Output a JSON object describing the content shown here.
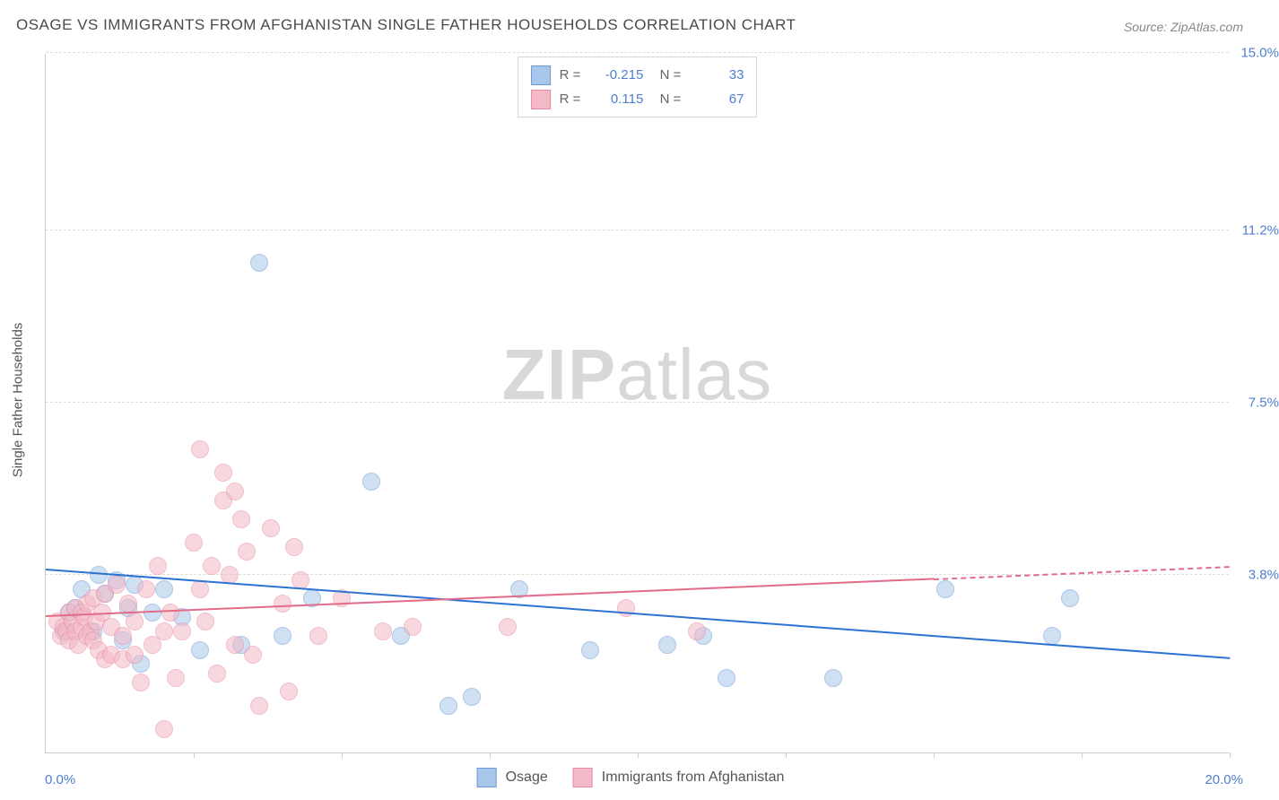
{
  "title": "OSAGE VS IMMIGRANTS FROM AFGHANISTAN SINGLE FATHER HOUSEHOLDS CORRELATION CHART",
  "source": "Source: ZipAtlas.com",
  "ylabel": "Single Father Households",
  "watermark_bold": "ZIP",
  "watermark_thin": "atlas",
  "chart": {
    "type": "scatter",
    "xlim": [
      0,
      20
    ],
    "ylim": [
      0,
      15
    ],
    "x_corner_min_label": "0.0%",
    "x_corner_max_label": "20.0%",
    "y_grid": [
      {
        "value": 3.8,
        "label": "3.8%"
      },
      {
        "value": 7.5,
        "label": "7.5%"
      },
      {
        "value": 11.2,
        "label": "11.2%"
      },
      {
        "value": 15.0,
        "label": "15.0%"
      }
    ],
    "x_ticks": [
      2.5,
      5.0,
      7.5,
      10.0,
      12.5,
      15.0,
      17.5,
      20.0
    ],
    "background_color": "#ffffff",
    "grid_color": "#dddddd",
    "axis_color": "#cccccc",
    "label_color": "#4f7fce",
    "series": [
      {
        "name": "Osage",
        "color_fill": "#a9c7ea",
        "color_stroke": "#6a9bd8",
        "fill_opacity": 0.55,
        "marker_radius": 10,
        "R": "-0.215",
        "N": "33",
        "trend": {
          "x1": 0,
          "y1": 3.9,
          "x2": 20,
          "y2": 2.0,
          "color": "#2e72d2",
          "width": 2.5
        },
        "points": [
          [
            0.3,
            2.6
          ],
          [
            0.4,
            3.0
          ],
          [
            0.5,
            3.1
          ],
          [
            0.6,
            3.5
          ],
          [
            0.8,
            2.6
          ],
          [
            0.9,
            3.8
          ],
          [
            1.0,
            3.4
          ],
          [
            1.2,
            3.7
          ],
          [
            1.3,
            2.4
          ],
          [
            1.4,
            3.1
          ],
          [
            1.5,
            3.6
          ],
          [
            1.6,
            1.9
          ],
          [
            1.8,
            3.0
          ],
          [
            2.0,
            3.5
          ],
          [
            2.3,
            2.9
          ],
          [
            2.6,
            2.2
          ],
          [
            3.3,
            2.3
          ],
          [
            3.6,
            10.5
          ],
          [
            4.0,
            2.5
          ],
          [
            4.5,
            3.3
          ],
          [
            5.5,
            5.8
          ],
          [
            6.0,
            2.5
          ],
          [
            6.8,
            1.0
          ],
          [
            7.2,
            1.2
          ],
          [
            8.0,
            3.5
          ],
          [
            9.2,
            2.2
          ],
          [
            10.5,
            2.3
          ],
          [
            11.1,
            2.5
          ],
          [
            11.5,
            1.6
          ],
          [
            13.3,
            1.6
          ],
          [
            15.2,
            3.5
          ],
          [
            17.0,
            2.5
          ],
          [
            17.3,
            3.3
          ]
        ]
      },
      {
        "name": "Immigrants from Afghanistan",
        "color_fill": "#f3b9c6",
        "color_stroke": "#e98aa2",
        "fill_opacity": 0.55,
        "marker_radius": 10,
        "R": "0.115",
        "N": "67",
        "trend": {
          "x1": 0,
          "y1": 2.9,
          "x2": 15,
          "y2": 3.7,
          "color": "#e26b8a",
          "width": 2,
          "dash_extend_to": 20
        },
        "points": [
          [
            0.2,
            2.8
          ],
          [
            0.25,
            2.5
          ],
          [
            0.3,
            2.7
          ],
          [
            0.35,
            2.6
          ],
          [
            0.4,
            2.4
          ],
          [
            0.4,
            3.0
          ],
          [
            0.45,
            2.8
          ],
          [
            0.5,
            2.6
          ],
          [
            0.5,
            3.1
          ],
          [
            0.55,
            2.3
          ],
          [
            0.6,
            2.7
          ],
          [
            0.6,
            3.0
          ],
          [
            0.65,
            2.9
          ],
          [
            0.7,
            2.5
          ],
          [
            0.7,
            3.2
          ],
          [
            0.75,
            2.6
          ],
          [
            0.8,
            2.4
          ],
          [
            0.8,
            3.3
          ],
          [
            0.85,
            2.8
          ],
          [
            0.9,
            2.2
          ],
          [
            0.95,
            3.0
          ],
          [
            1.0,
            2.0
          ],
          [
            1.0,
            3.4
          ],
          [
            1.1,
            2.1
          ],
          [
            1.1,
            2.7
          ],
          [
            1.2,
            3.6
          ],
          [
            1.3,
            2.5
          ],
          [
            1.3,
            2.0
          ],
          [
            1.4,
            3.2
          ],
          [
            1.5,
            2.1
          ],
          [
            1.5,
            2.8
          ],
          [
            1.6,
            1.5
          ],
          [
            1.7,
            3.5
          ],
          [
            1.8,
            2.3
          ],
          [
            1.9,
            4.0
          ],
          [
            2.0,
            2.6
          ],
          [
            2.0,
            0.5
          ],
          [
            2.1,
            3.0
          ],
          [
            2.2,
            1.6
          ],
          [
            2.3,
            2.6
          ],
          [
            2.5,
            4.5
          ],
          [
            2.6,
            3.5
          ],
          [
            2.6,
            6.5
          ],
          [
            2.7,
            2.8
          ],
          [
            2.8,
            4.0
          ],
          [
            2.9,
            1.7
          ],
          [
            3.0,
            5.4
          ],
          [
            3.0,
            6.0
          ],
          [
            3.1,
            3.8
          ],
          [
            3.2,
            2.3
          ],
          [
            3.2,
            5.6
          ],
          [
            3.4,
            4.3
          ],
          [
            3.5,
            2.1
          ],
          [
            3.6,
            1.0
          ],
          [
            3.8,
            4.8
          ],
          [
            4.0,
            3.2
          ],
          [
            4.1,
            1.3
          ],
          [
            4.2,
            4.4
          ],
          [
            4.3,
            3.7
          ],
          [
            4.6,
            2.5
          ],
          [
            5.0,
            3.3
          ],
          [
            5.7,
            2.6
          ],
          [
            6.2,
            2.7
          ],
          [
            7.8,
            2.7
          ],
          [
            9.8,
            3.1
          ],
          [
            11.0,
            2.6
          ],
          [
            3.3,
            5.0
          ]
        ]
      }
    ]
  },
  "legend_bottom": [
    {
      "label": "Osage",
      "swatch_fill": "#a9c7ea",
      "swatch_stroke": "#6a9bd8"
    },
    {
      "label": "Immigrants from Afghanistan",
      "swatch_fill": "#f3b9c6",
      "swatch_stroke": "#e98aa2"
    }
  ]
}
